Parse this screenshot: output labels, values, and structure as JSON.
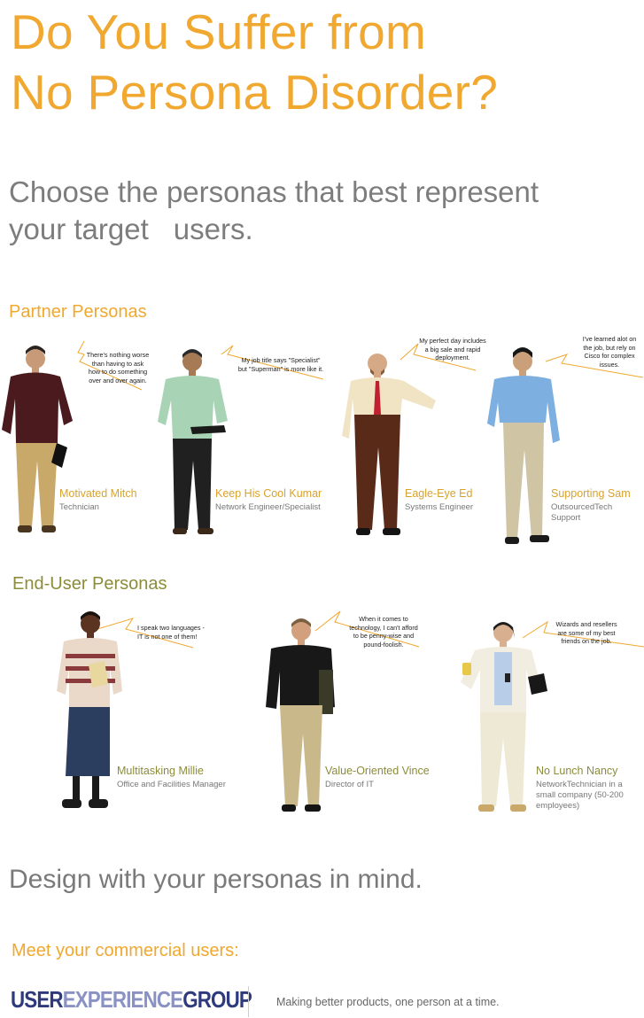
{
  "title": {
    "line1": "Do You Suffer from",
    "line2": "No Persona Disorder?"
  },
  "subtitle": {
    "line1": "Choose the personas that best represent",
    "line2a": "your target",
    "line2b": "users."
  },
  "partner": {
    "heading": "Partner Personas",
    "personas": [
      {
        "name": "Motivated Mitch",
        "role": "Technician",
        "quote": [
          "There's nothing worse",
          "than having to ask",
          "how to do something",
          "over and over again."
        ]
      },
      {
        "name": "Keep His Cool Kumar",
        "role": "Network Engineer/Specialist",
        "quote": [
          "My job title says \"Specialist\"",
          "but \"Superman\" is more like it."
        ]
      },
      {
        "name": "Eagle-Eye Ed",
        "role": "Systems Engineer",
        "quote": [
          "My perfect day includes",
          "a big sale and rapid",
          "deployment."
        ]
      },
      {
        "name": "Supporting Sam",
        "role": "OutsourcedTech Support",
        "quote": [
          "I've learned alot on",
          "the job, but rely on",
          "Cisco for complex",
          "issues."
        ]
      }
    ]
  },
  "end_user": {
    "heading": "End-User Personas",
    "personas": [
      {
        "name": "Multitasking Millie",
        "role": [
          "Office and Facilities Manager"
        ],
        "quote": [
          "I speak two languages -",
          "IT is not one of them!"
        ]
      },
      {
        "name": "Value-Oriented Vince",
        "role": [
          "Director of IT"
        ],
        "quote": [
          "When it comes to",
          "technology, I can't afford",
          "to be penny-wise and",
          "pound-foolish."
        ]
      },
      {
        "name": "No Lunch Nancy",
        "role": [
          "NetworkTechnician in a",
          "small company (50-200",
          "employees)"
        ],
        "quote": [
          "Wizards and resellers",
          "are some of my best",
          "friends on the job."
        ]
      }
    ]
  },
  "design_line": "Design with your personas in mind.",
  "meet_line": "Meet your commercial users:",
  "brand": {
    "part1": "USER",
    "part2": "EXPERIENCE",
    "part3": "GROUP"
  },
  "tagline": "Making better products, one person at a time.",
  "colors": {
    "title_orange": "#f0a830",
    "end_user_olive": "#8c8c3a",
    "brand_navy": "#2e3a7c",
    "brand_light": "#8a92c4"
  }
}
